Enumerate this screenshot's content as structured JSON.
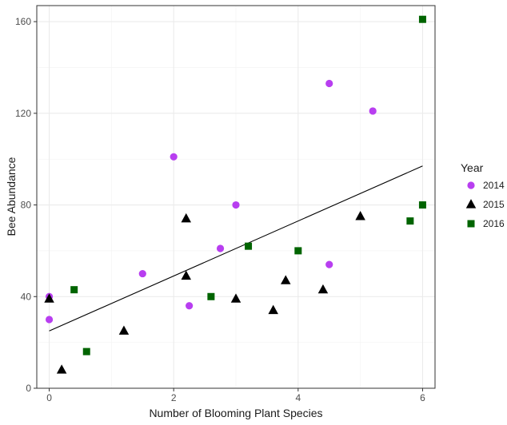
{
  "chart_data": {
    "type": "scatter",
    "title": "",
    "xlabel": "Number of Blooming Plant Species",
    "ylabel": "Bee Abundance",
    "xlim": [
      -0.2,
      6.2
    ],
    "ylim": [
      0,
      167
    ],
    "xticks": [
      0,
      2,
      4,
      6
    ],
    "yticks": [
      0,
      40,
      80,
      120,
      160
    ],
    "grid": true,
    "legend": {
      "title": "Year",
      "position": "right"
    },
    "series": [
      {
        "name": "2014",
        "shape": "circle",
        "color": "#b83ef0",
        "points": [
          {
            "x": 0,
            "y": 40
          },
          {
            "x": 0,
            "y": 30
          },
          {
            "x": 1.5,
            "y": 50
          },
          {
            "x": 2,
            "y": 101
          },
          {
            "x": 2.25,
            "y": 36
          },
          {
            "x": 2.75,
            "y": 61
          },
          {
            "x": 3,
            "y": 80
          },
          {
            "x": 4.5,
            "y": 133
          },
          {
            "x": 4.5,
            "y": 54
          },
          {
            "x": 5.2,
            "y": 121
          }
        ]
      },
      {
        "name": "2015",
        "shape": "triangle",
        "color": "#000000",
        "points": [
          {
            "x": 0,
            "y": 39
          },
          {
            "x": 0.2,
            "y": 8
          },
          {
            "x": 1.2,
            "y": 25
          },
          {
            "x": 2.2,
            "y": 74
          },
          {
            "x": 2.2,
            "y": 49
          },
          {
            "x": 3,
            "y": 39
          },
          {
            "x": 3.6,
            "y": 34
          },
          {
            "x": 3.8,
            "y": 47
          },
          {
            "x": 4.4,
            "y": 43
          },
          {
            "x": 5,
            "y": 75
          }
        ]
      },
      {
        "name": "2016",
        "shape": "square",
        "color": "#006400",
        "points": [
          {
            "x": 0.4,
            "y": 43
          },
          {
            "x": 0.6,
            "y": 16
          },
          {
            "x": 2.6,
            "y": 40
          },
          {
            "x": 3.2,
            "y": 62
          },
          {
            "x": 4,
            "y": 60
          },
          {
            "x": 5.8,
            "y": 73
          },
          {
            "x": 6,
            "y": 80
          },
          {
            "x": 6,
            "y": 161
          }
        ]
      }
    ],
    "trendline": {
      "x": [
        0,
        6
      ],
      "y": [
        25,
        97
      ],
      "color": "#000000"
    }
  }
}
